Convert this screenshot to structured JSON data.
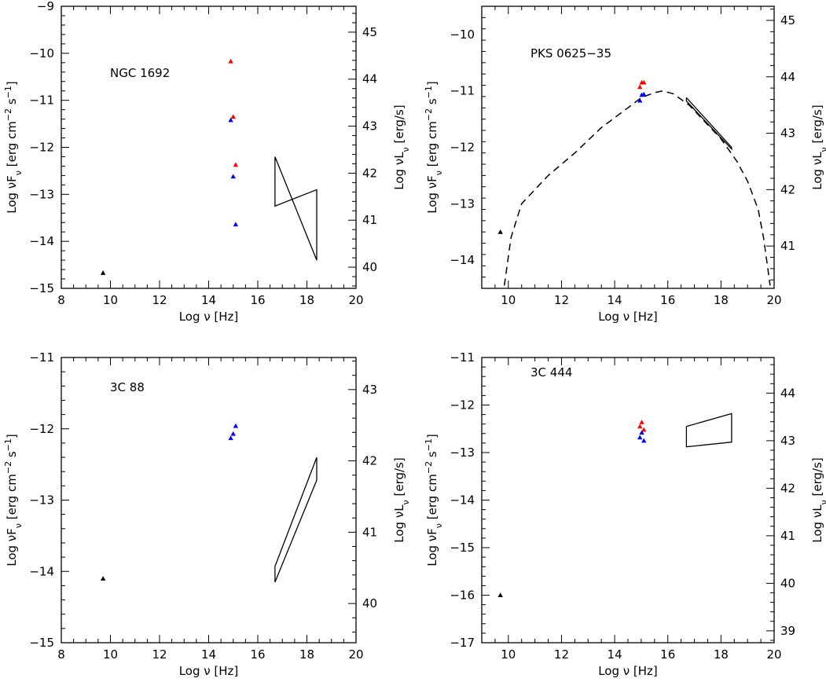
{
  "figure": {
    "xlabel": "Log ν [Hz]",
    "ylabel_left": "Log νF_ν [erg cm⁻² s⁻¹]",
    "ylabel_right": "Log νL_ν [erg/s]"
  },
  "colors": {
    "optical_a": "#ff0000",
    "optical_b": "#0000ff",
    "radio": "#000000",
    "lines": "#000000"
  },
  "chart_data": [
    {
      "type": "scatter",
      "name_label": "NGC 1692",
      "xlim": [
        8,
        20
      ],
      "ylim_left": [
        -15,
        -9
      ],
      "ylim_right": [
        39.55,
        45.55
      ],
      "x_ticks": [
        8,
        10,
        12,
        14,
        16,
        18,
        20
      ],
      "y_ticks_left": [
        -15,
        -14,
        -13,
        -12,
        -11,
        -10,
        -9
      ],
      "y_ticks_right": [
        40,
        41,
        42,
        43,
        44,
        45
      ],
      "points": [
        {
          "x": 9.7,
          "y": -14.67,
          "color": "radio"
        },
        {
          "x": 14.9,
          "y": -10.17,
          "color": "optical_a"
        },
        {
          "x": 15.0,
          "y": -11.35,
          "color": "optical_a"
        },
        {
          "x": 15.1,
          "y": -12.37,
          "color": "optical_a"
        },
        {
          "x": 14.9,
          "y": -11.42,
          "color": "optical_b"
        },
        {
          "x": 15.0,
          "y": -12.62,
          "color": "optical_b"
        },
        {
          "x": 15.1,
          "y": -13.64,
          "color": "optical_b"
        }
      ],
      "bowtie": [
        [
          16.7,
          -12.2
        ],
        [
          18.4,
          -14.4
        ],
        [
          18.4,
          -12.9
        ],
        [
          16.7,
          -13.25
        ],
        [
          16.7,
          -12.2
        ]
      ],
      "model_curve": []
    },
    {
      "type": "scatter",
      "name_label": "PKS 0625−35",
      "xlim": [
        9,
        20
      ],
      "ylim_left": [
        -14.5,
        -9.5
      ],
      "ylim_right": [
        40.25,
        45.25
      ],
      "x_ticks": [
        10,
        12,
        14,
        16,
        18,
        20
      ],
      "y_ticks_left": [
        -14,
        -13,
        -12,
        -11,
        -10
      ],
      "y_ticks_right": [
        41,
        42,
        43,
        44,
        45
      ],
      "points": [
        {
          "x": 9.7,
          "y": -13.5,
          "color": "radio"
        },
        {
          "x": 14.95,
          "y": -10.93,
          "color": "optical_a"
        },
        {
          "x": 15.02,
          "y": -10.85,
          "color": "optical_a"
        },
        {
          "x": 15.1,
          "y": -10.85,
          "color": "optical_a"
        },
        {
          "x": 14.95,
          "y": -11.17,
          "color": "optical_b"
        },
        {
          "x": 15.02,
          "y": -11.07,
          "color": "optical_b"
        },
        {
          "x": 15.1,
          "y": -11.06,
          "color": "optical_b"
        }
      ],
      "bowtie": [
        [
          16.7,
          -11.12
        ],
        [
          18.4,
          -12.0
        ],
        [
          18.4,
          -12.03
        ],
        [
          16.7,
          -11.18
        ],
        [
          16.7,
          -11.12
        ]
      ],
      "model_curve": [
        [
          9.85,
          -14.45
        ],
        [
          10.1,
          -13.6
        ],
        [
          10.5,
          -13.0
        ],
        [
          11.5,
          -12.5
        ],
        [
          12.5,
          -12.1
        ],
        [
          13.5,
          -11.65
        ],
        [
          14.5,
          -11.3
        ],
        [
          15.0,
          -11.12
        ],
        [
          15.5,
          -11.03
        ],
        [
          15.8,
          -11.0
        ],
        [
          16.2,
          -11.05
        ],
        [
          16.8,
          -11.25
        ],
        [
          17.4,
          -11.55
        ],
        [
          18.0,
          -11.85
        ],
        [
          18.6,
          -12.25
        ],
        [
          19.0,
          -12.6
        ],
        [
          19.4,
          -13.1
        ],
        [
          19.6,
          -13.6
        ],
        [
          19.75,
          -14.1
        ],
        [
          19.85,
          -14.45
        ]
      ]
    },
    {
      "type": "scatter",
      "name_label": "3C 88",
      "xlim": [
        8,
        20
      ],
      "ylim_left": [
        -15,
        -11
      ],
      "ylim_right": [
        39.45,
        43.45
      ],
      "x_ticks": [
        8,
        10,
        12,
        14,
        16,
        18,
        20
      ],
      "y_ticks_left": [
        -15,
        -14,
        -13,
        -12,
        -11
      ],
      "y_ticks_right": [
        40,
        41,
        42,
        43
      ],
      "points": [
        {
          "x": 9.7,
          "y": -14.1,
          "color": "radio"
        },
        {
          "x": 14.9,
          "y": -12.13,
          "color": "optical_b"
        },
        {
          "x": 15.0,
          "y": -12.07,
          "color": "optical_b"
        },
        {
          "x": 15.1,
          "y": -11.96,
          "color": "optical_b"
        }
      ],
      "bowtie": [
        [
          16.7,
          -13.93
        ],
        [
          18.4,
          -12.4
        ],
        [
          18.4,
          -12.72
        ],
        [
          16.7,
          -14.15
        ],
        [
          16.7,
          -13.93
        ]
      ],
      "model_curve": []
    },
    {
      "type": "scatter",
      "name_label": "3C 444",
      "xlim": [
        9,
        20
      ],
      "ylim_left": [
        -17,
        -11
      ],
      "ylim_right": [
        38.75,
        44.75
      ],
      "x_ticks": [
        10,
        12,
        14,
        16,
        18,
        20
      ],
      "y_ticks_left": [
        -17,
        -16,
        -15,
        -14,
        -13,
        -12,
        -11
      ],
      "y_ticks_right": [
        39,
        40,
        41,
        42,
        43,
        44
      ],
      "points": [
        {
          "x": 9.7,
          "y": -16.0,
          "color": "radio"
        },
        {
          "x": 14.95,
          "y": -12.45,
          "color": "optical_a"
        },
        {
          "x": 15.02,
          "y": -12.36,
          "color": "optical_a"
        },
        {
          "x": 15.1,
          "y": -12.52,
          "color": "optical_a"
        },
        {
          "x": 14.95,
          "y": -12.68,
          "color": "optical_b"
        },
        {
          "x": 15.02,
          "y": -12.58,
          "color": "optical_b"
        },
        {
          "x": 15.1,
          "y": -12.75,
          "color": "optical_b"
        }
      ],
      "bowtie": [
        [
          16.7,
          -12.45
        ],
        [
          18.4,
          -12.18
        ],
        [
          18.4,
          -12.78
        ],
        [
          16.7,
          -12.88
        ],
        [
          16.7,
          -12.45
        ]
      ],
      "model_curve": []
    }
  ]
}
